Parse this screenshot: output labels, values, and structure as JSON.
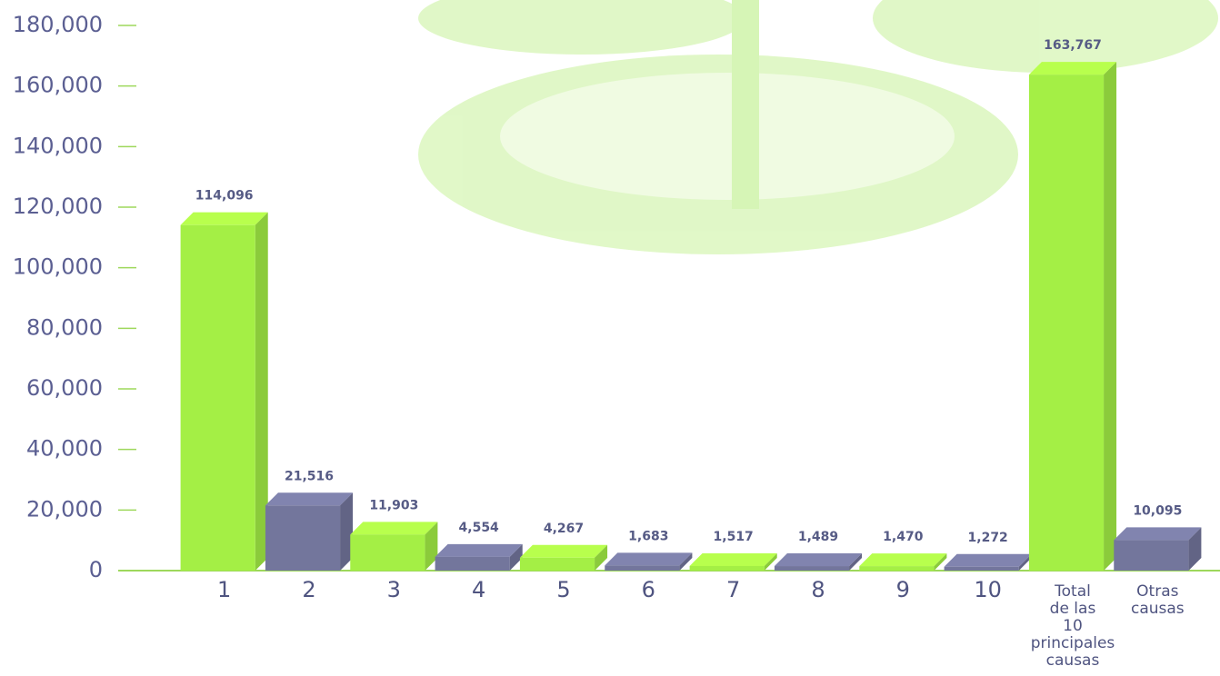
{
  "chart_data": {
    "type": "bar3d",
    "categories": [
      "1",
      "2",
      "3",
      "4",
      "5",
      "6",
      "7",
      "8",
      "9",
      "10",
      "Total\nde las\n10\nprincipales\ncausas",
      "Otras\ncausas"
    ],
    "values": [
      114096,
      21516,
      11903,
      4554,
      4267,
      1683,
      1517,
      1489,
      1470,
      1272,
      163767,
      10095
    ],
    "value_labels": [
      "114,096",
      "21,516",
      "11,903",
      "4,554",
      "4,267",
      "1,683",
      "1,517",
      "1,489",
      "1,470",
      "1,272",
      "163,767",
      "10,095"
    ],
    "colors": [
      "#a4ef45",
      "#73769c",
      "#a4ef45",
      "#73769c",
      "#a4ef45",
      "#73769c",
      "#a4ef45",
      "#73769c",
      "#a4ef45",
      "#73769c",
      "#a4ef45",
      "#73769c"
    ],
    "ylim": [
      0,
      180000
    ],
    "yticks": [
      0,
      {
        "value": 20000,
        "label": "20,000"
      },
      {
        "value": 40000,
        "label": "40,000"
      },
      {
        "value": 60000,
        "label": "60,000"
      },
      {
        "value": 80000,
        "label": "80,000"
      },
      {
        "value": 100000,
        "label": "100,000"
      },
      {
        "value": 120000,
        "label": "120,000"
      },
      {
        "value": 140000,
        "label": "140,000"
      },
      {
        "value": 160000,
        "label": "160,000"
      },
      {
        "value": 180000,
        "label": "180,000"
      }
    ]
  }
}
